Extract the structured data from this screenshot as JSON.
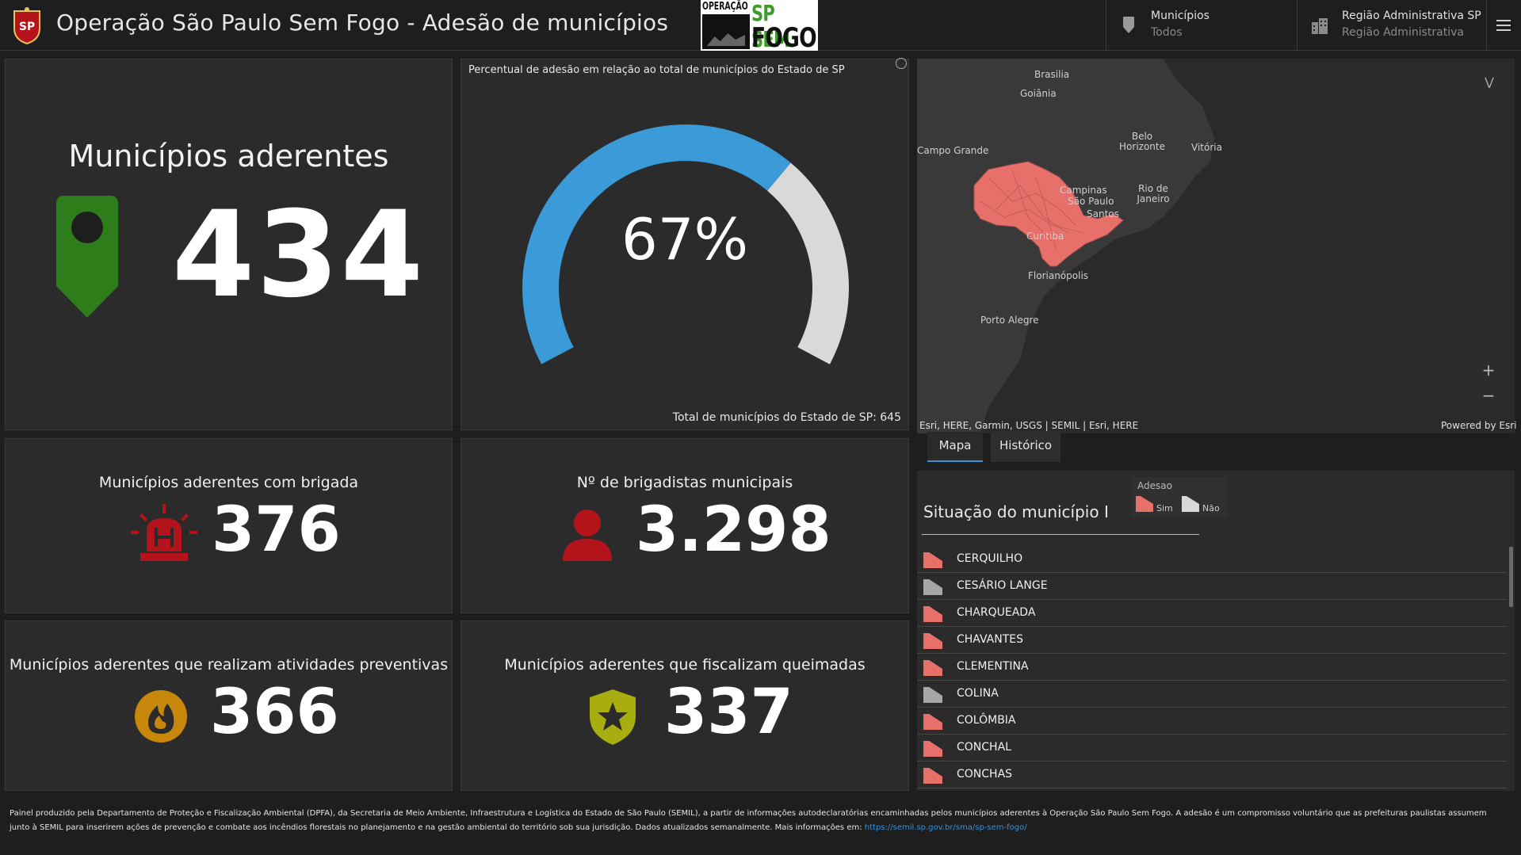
{
  "header": {
    "title": "Operação São Paulo Sem Fogo - Adesão de municípios",
    "logo": {
      "line1": "OPERAÇÃO",
      "line2": "SP SEM",
      "line3": "FOGO"
    },
    "filters": [
      {
        "label": "Municípios",
        "value": "Todos",
        "icon": "pin-icon"
      },
      {
        "label": "Região Administrativa SP",
        "value": "Região Administrativa",
        "icon": "buildings-icon"
      }
    ],
    "menu_icon": "hamburger-icon"
  },
  "kpis": {
    "main": {
      "title": "Municípios aderentes",
      "value": "434",
      "icon": "map-pin-icon",
      "color": "#2d7d1b"
    },
    "brigada": {
      "title": "Municípios aderentes com brigada",
      "value": "376",
      "icon": "siren-icon",
      "color": "#b3141c"
    },
    "brigadistas": {
      "title": "Nº de brigadistas municipais",
      "value": "3.298",
      "icon": "person-icon",
      "color": "#b3141c"
    },
    "preventivas": {
      "title": "Municípios aderentes que realizam atividades preventivas",
      "value": "366",
      "icon": "fire-icon",
      "color": "#c7870a"
    },
    "fiscalizam": {
      "title": "Municípios aderentes que fiscalizam queimadas",
      "value": "337",
      "icon": "shield-star-icon",
      "color": "#a8ad10"
    }
  },
  "gauge": {
    "caption": "Percentual de adesão em relação ao total de municípios do Estado de SP",
    "value_label": "67%",
    "fraction": 0.67,
    "footer": "Total de municípios do Estado de SP: 645",
    "fill_color": "#3b9ad8",
    "track_color": "#d9d9d9"
  },
  "map": {
    "labels": [
      "Brasilia",
      "Goiânia",
      "Campo Grande",
      "Belo Horizonte",
      "Vitória",
      "Rio de Janeiro",
      "Campinas",
      "São Paulo",
      "Santos",
      "Curitiba",
      "Florianópolis",
      "Porto Alegre"
    ],
    "attribution": "Esri, HERE, Garmin, USGS | SEMIL | Esri, HERE",
    "powered": "Powered by Esri",
    "zoom_in": "+",
    "zoom_out": "−"
  },
  "tabs": [
    {
      "label": "Mapa",
      "active": true
    },
    {
      "label": "Histórico",
      "active": false
    }
  ],
  "list": {
    "title": "Situação do município",
    "legend": {
      "title": "Adesao",
      "yes": "Sim",
      "no": "Não",
      "yes_color": "#e8706a",
      "no_color": "#d8d8d8"
    },
    "items": [
      {
        "name": "CERQUILHO",
        "adesao": "Sim"
      },
      {
        "name": "CESÁRIO LANGE",
        "adesao": "Não"
      },
      {
        "name": "CHARQUEADA",
        "adesao": "Sim"
      },
      {
        "name": "CHAVANTES",
        "adesao": "Sim"
      },
      {
        "name": "CLEMENTINA",
        "adesao": "Sim"
      },
      {
        "name": "COLINA",
        "adesao": "Não"
      },
      {
        "name": "COLÔMBIA",
        "adesao": "Sim"
      },
      {
        "name": "CONCHAL",
        "adesao": "Sim"
      },
      {
        "name": "CONCHAS",
        "adesao": "Sim"
      }
    ]
  },
  "footer": {
    "text": "Painel produzido pela Departamento de Proteção e Fiscalização Ambiental (DPFA), da Secretaria de Meio Ambiente, Infraestrutura e Logística do Estado de São Paulo (SEMIL), a partir de informações autodeclaratórias encaminhadas pelos municípios aderentes à Operação São Paulo Sem Fogo. A adesão é um compromisso voluntário que as prefeituras paulistas assumem junto à SEMIL para inserirem ações de prevenção e combate aos incêndios florestais no planejamento e na gestão ambiental do território sob sua jurisdição. Dados atualizados semanalmente.  Mais informações em: ",
    "link": "https://semil.sp.gov.br/sma/sp-sem-fogo/"
  }
}
